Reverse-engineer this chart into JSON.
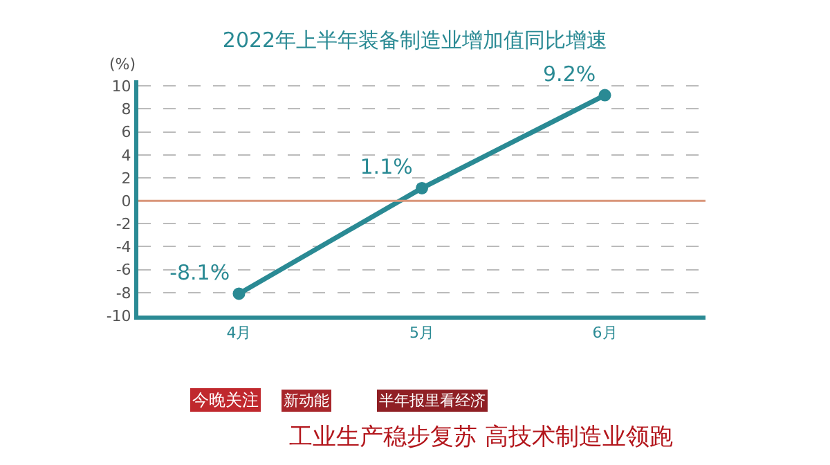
{
  "chart_data": {
    "type": "line",
    "title": "2022年上半年装备制造业增加值同比增速",
    "ylabel": "(%)",
    "categories": [
      "4月",
      "5月",
      "6月"
    ],
    "series": [
      {
        "color": "#2a8a94",
        "values": [
          -8.1,
          1.1,
          9.2
        ],
        "value_labels": [
          "-8.1%",
          "1.1%",
          "9.2%"
        ]
      }
    ],
    "ylim": [
      -10,
      10.5
    ],
    "yticks": [
      -10,
      -8,
      -6,
      -4,
      -2,
      0,
      2,
      4,
      6,
      8,
      10
    ],
    "grid": "y",
    "marker": "circle",
    "line_style": "solid",
    "legend": false,
    "ref_lines": [
      {
        "axis": "y",
        "value": 0,
        "color": "#d9967a"
      }
    ],
    "annotations": [
      "今晚关注",
      "新动能",
      "半年报里看经济",
      "工业生产稳步复苏 高技术制造业领跑"
    ]
  }
}
